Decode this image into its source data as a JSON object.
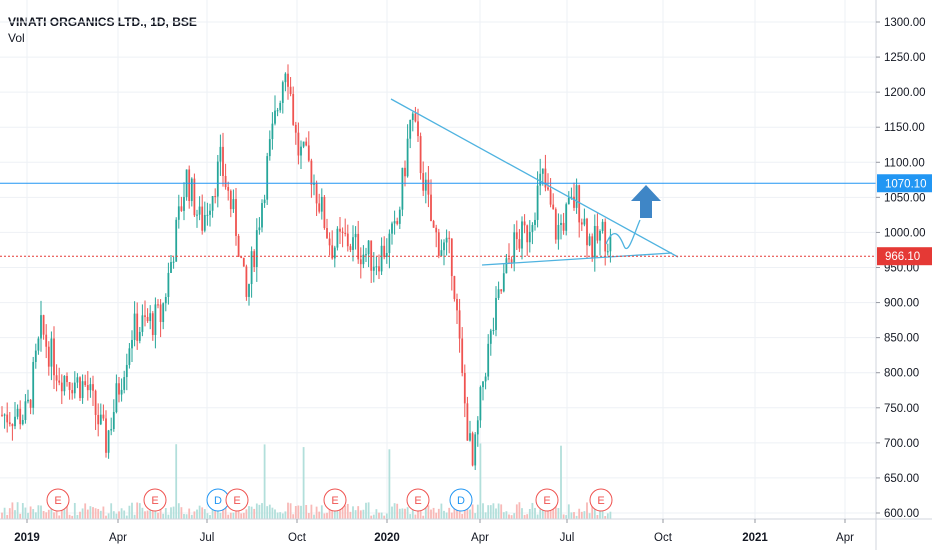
{
  "legend": {
    "symbol": "VINATI ORGANICS LTD., 1D, BSE",
    "volume_label": "Vol"
  },
  "colors": {
    "up": "#26a69a",
    "down": "#ef5350",
    "volume_up": "#b2dfdb",
    "volume_down": "#f8b9b7",
    "trendline": "#4fb3e0",
    "resistance": "#2196f3",
    "price_line": "#e53935",
    "arrow": "#3f86c6",
    "grid": "#eef1f5",
    "axis_text": "#131722"
  },
  "chart_data": {
    "type": "candlestick",
    "symbol": "VINATI ORGANICS LTD.",
    "interval": "1D",
    "exchange": "BSE",
    "ylim": [
      592,
      1318
    ],
    "y_ticks": [
      "1300.00",
      "1250.00",
      "1200.00",
      "1150.00",
      "1100.00",
      "1050.00",
      "1000.00",
      "950.00",
      "900.00",
      "850.00",
      "800.00",
      "750.00",
      "700.00",
      "650.00",
      "600.00"
    ],
    "x_ticks": [
      "2019",
      "Apr",
      "Jul",
      "Oct",
      "2020",
      "Apr",
      "Jul",
      "Oct",
      "2021",
      "Apr"
    ],
    "price_levels": {
      "resistance": "1070.10",
      "last_price": "966.10"
    },
    "approx_price_path": [
      [
        "2019-01-01",
        740
      ],
      [
        "2019-01-15",
        860
      ],
      [
        "2019-02-01",
        800
      ],
      [
        "2019-03-01",
        780
      ],
      [
        "2019-03-20",
        700
      ],
      [
        "2019-04-15",
        860
      ],
      [
        "2019-05-15",
        880
      ],
      [
        "2019-06-10",
        1080
      ],
      [
        "2019-06-25",
        1010
      ],
      [
        "2019-07-15",
        1100
      ],
      [
        "2019-08-01",
        1000
      ],
      [
        "2019-08-10",
        900
      ],
      [
        "2019-09-01",
        1100
      ],
      [
        "2019-09-20",
        1250
      ],
      [
        "2019-10-01",
        1120
      ],
      [
        "2019-10-15",
        1090
      ],
      [
        "2019-11-05",
        980
      ],
      [
        "2019-11-20",
        990
      ],
      [
        "2019-12-20",
        960
      ],
      [
        "2020-01-10",
        1000
      ],
      [
        "2020-01-25",
        1170
      ],
      [
        "2020-02-15",
        1000
      ],
      [
        "2020-03-05",
        960
      ],
      [
        "2020-03-15",
        780
      ],
      [
        "2020-03-25",
        660
      ],
      [
        "2020-04-05",
        800
      ],
      [
        "2020-04-20",
        900
      ],
      [
        "2020-05-05",
        980
      ],
      [
        "2020-05-20",
        1000
      ],
      [
        "2020-06-05",
        1080
      ],
      [
        "2020-06-20",
        1000
      ],
      [
        "2020-07-10",
        1050
      ],
      [
        "2020-07-25",
        980
      ],
      [
        "2020-08-05",
        1000
      ],
      [
        "2020-08-20",
        966
      ]
    ],
    "earnings_markers": [
      "E",
      "E",
      "D",
      "E",
      "E",
      "E",
      "D",
      "E",
      "E"
    ]
  }
}
